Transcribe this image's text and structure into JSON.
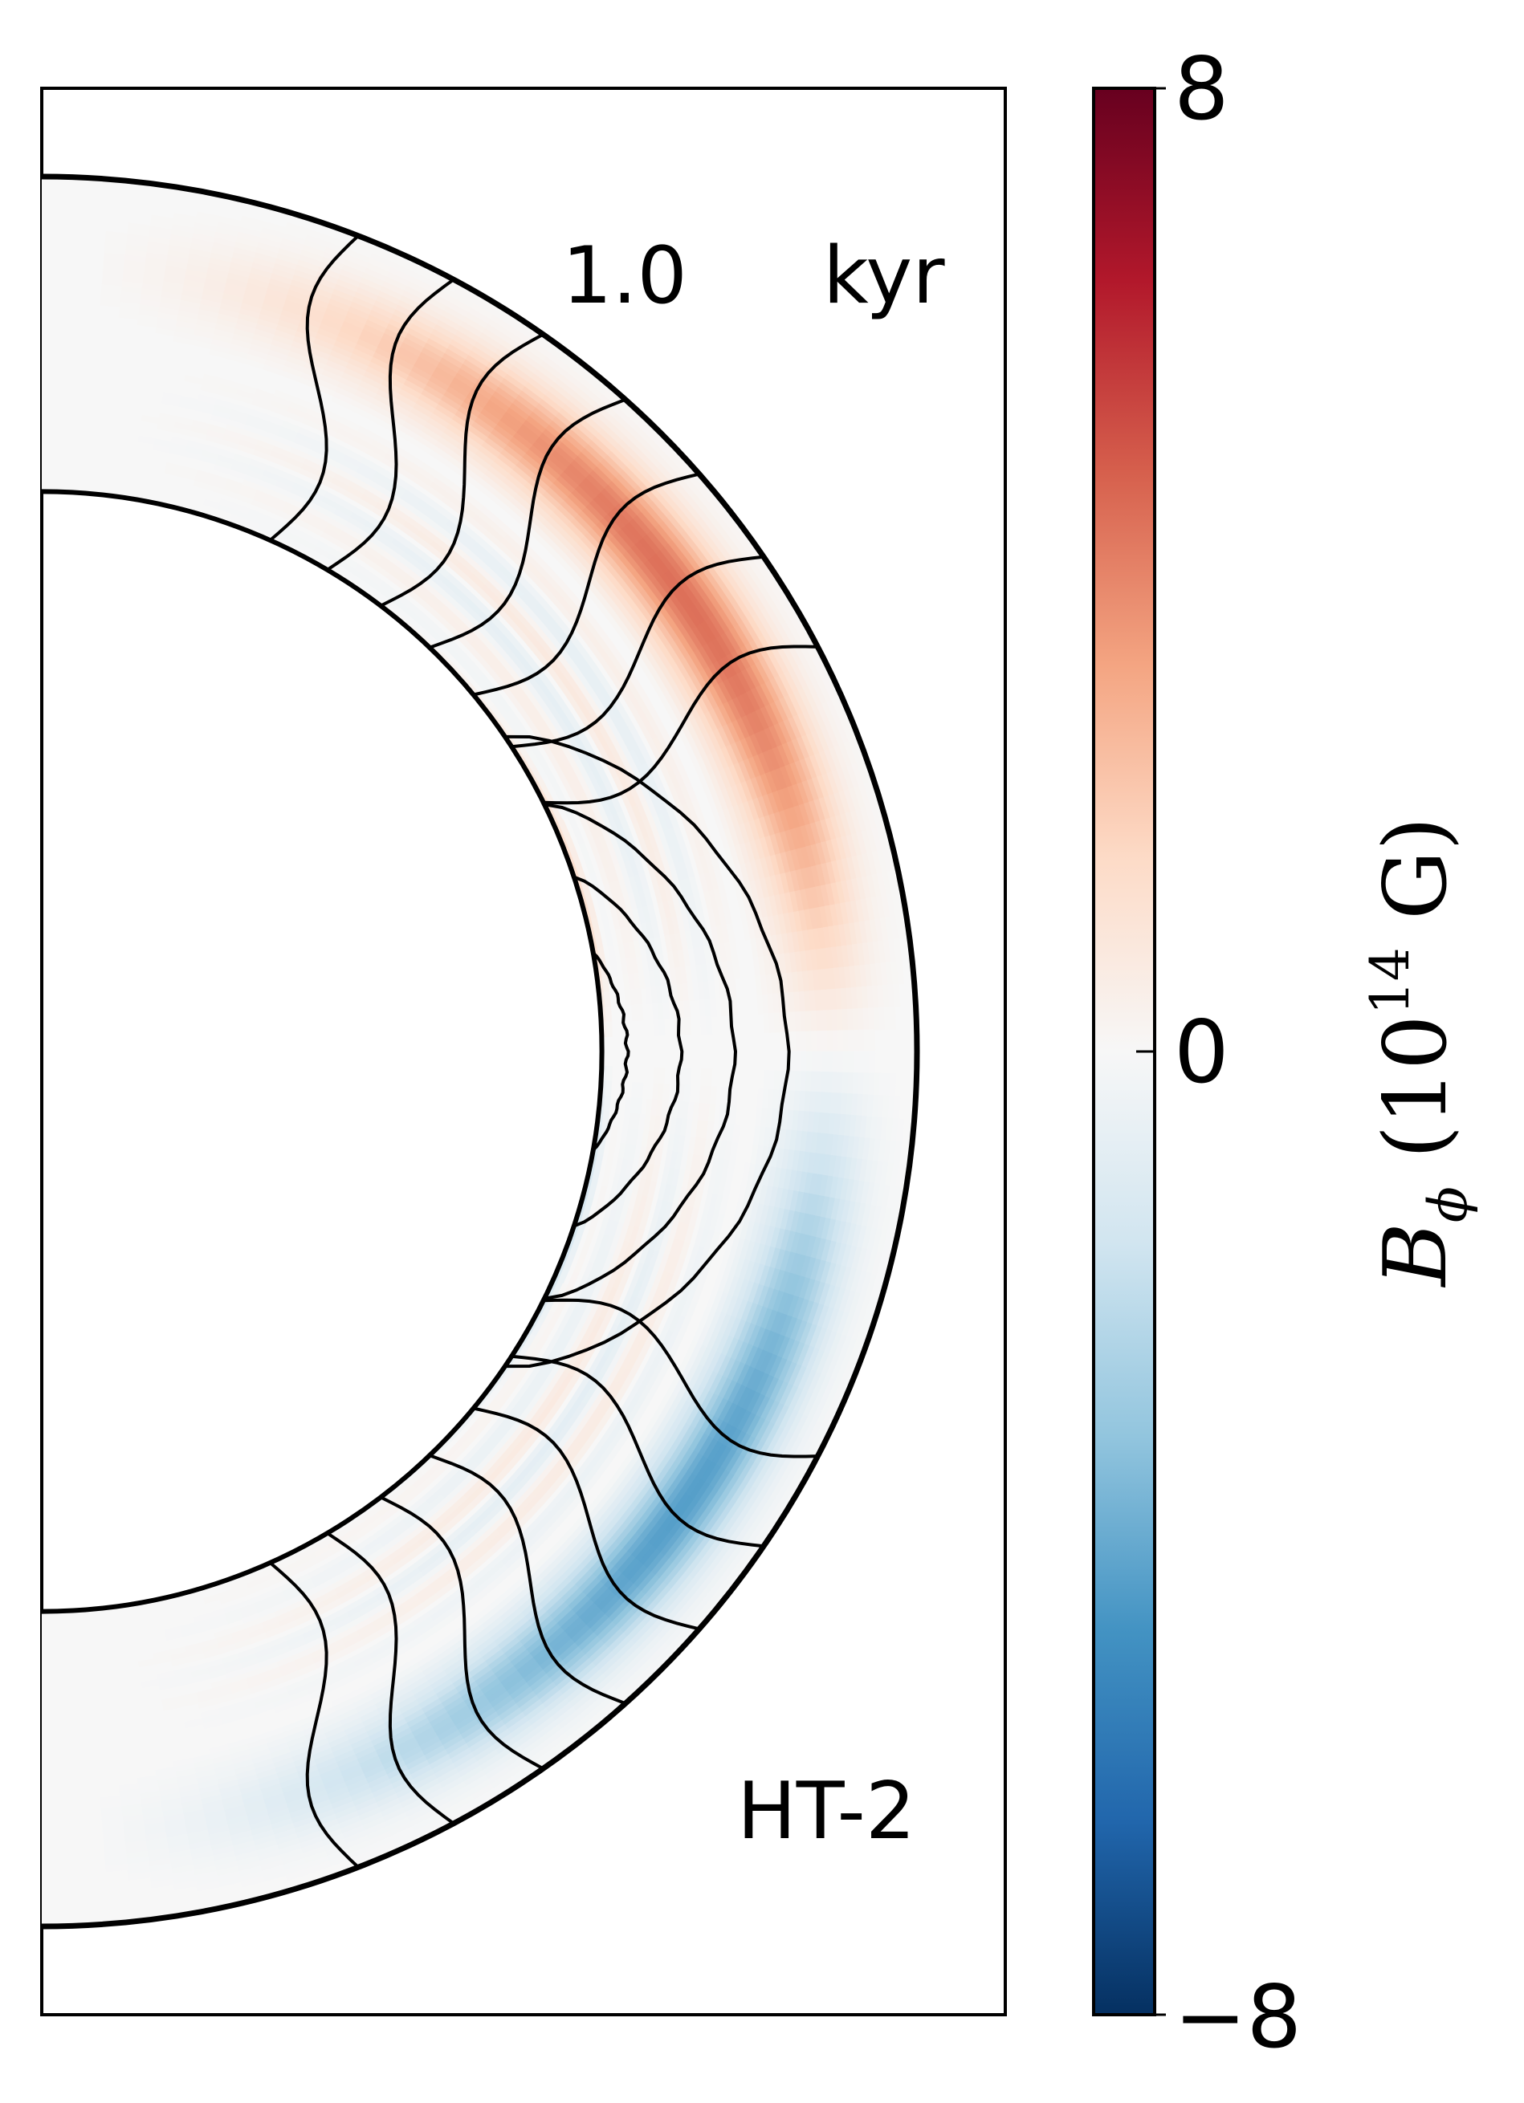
{
  "chart_data": {
    "type": "heatmap",
    "description_labels": {
      "time_value": "1.0",
      "time_unit": "kyr",
      "model_label": "HT-2"
    },
    "colorbar": {
      "colormap": "RdBu_r",
      "vmin": -8,
      "vmax": 8,
      "ticks": [
        8,
        0,
        -8
      ],
      "tick_labels": [
        "8",
        "0",
        "−8"
      ],
      "label_parts": {
        "symbol": "B",
        "subscript": "ϕ",
        "open_paren": " (10",
        "exponent": "14",
        "unit": " G)"
      },
      "colors": [
        "#053061",
        "#2166ac",
        "#4393c3",
        "#92c5de",
        "#d1e5f0",
        "#f7f7f7",
        "#fddbc7",
        "#f4a582",
        "#d6604d",
        "#b2182b",
        "#67001f"
      ]
    },
    "field": {
      "quantity": "toroidal magnetic field B_phi",
      "inner_radius_fraction": 0.64,
      "outer_radius_fraction": 1.0,
      "max_abs_value": 8,
      "structure": "antisymmetric about equator: positive (red) in northern crust, negative (blue) in southern crust, with thin alternating bands near the inner boundary"
    },
    "field_lines": {
      "count_closed_loops": 4,
      "count_open_lines": 7,
      "color": "#000000"
    }
  }
}
